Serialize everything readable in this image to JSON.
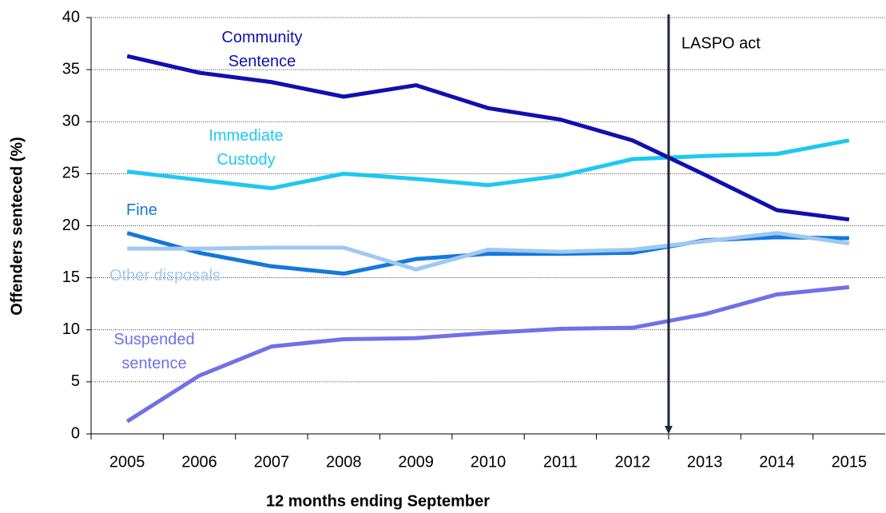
{
  "chart_data": {
    "type": "line",
    "xlabel": "12 months ending September",
    "ylabel": "Offenders senteced (%)",
    "categories": [
      "2005",
      "2006",
      "2007",
      "2008",
      "2009",
      "2010",
      "2011",
      "2012",
      "2013",
      "2014",
      "2015"
    ],
    "series": [
      {
        "name": "Community Sentence",
        "color": "#1010b0",
        "values": [
          36.3,
          34.7,
          33.8,
          32.4,
          33.5,
          31.3,
          30.2,
          28.2,
          24.9,
          21.5,
          20.6
        ]
      },
      {
        "name": "Immediate Custody",
        "color": "#1ec8f0",
        "values": [
          25.2,
          24.4,
          23.6,
          25.0,
          24.5,
          23.9,
          24.8,
          26.4,
          26.7,
          26.9,
          28.2
        ]
      },
      {
        "name": "Fine",
        "color": "#1478dc",
        "values": [
          19.3,
          17.4,
          16.1,
          15.4,
          16.8,
          17.3,
          17.3,
          17.4,
          18.6,
          18.9,
          18.8
        ]
      },
      {
        "name": "Other disposals",
        "color": "#a0c8f0",
        "values": [
          17.8,
          17.8,
          17.9,
          17.9,
          15.8,
          17.7,
          17.5,
          17.7,
          18.5,
          19.3,
          18.3
        ]
      },
      {
        "name": "Suspended sentence",
        "color": "#7070e8",
        "values": [
          1.2,
          5.6,
          8.4,
          9.1,
          9.2,
          9.7,
          10.1,
          10.2,
          11.5,
          13.4,
          14.1
        ]
      }
    ],
    "annotation": "LASPO act",
    "ylim": [
      0,
      40
    ],
    "yticks": [
      0,
      5,
      10,
      15,
      20,
      25,
      30,
      35,
      40
    ],
    "grid": true
  }
}
